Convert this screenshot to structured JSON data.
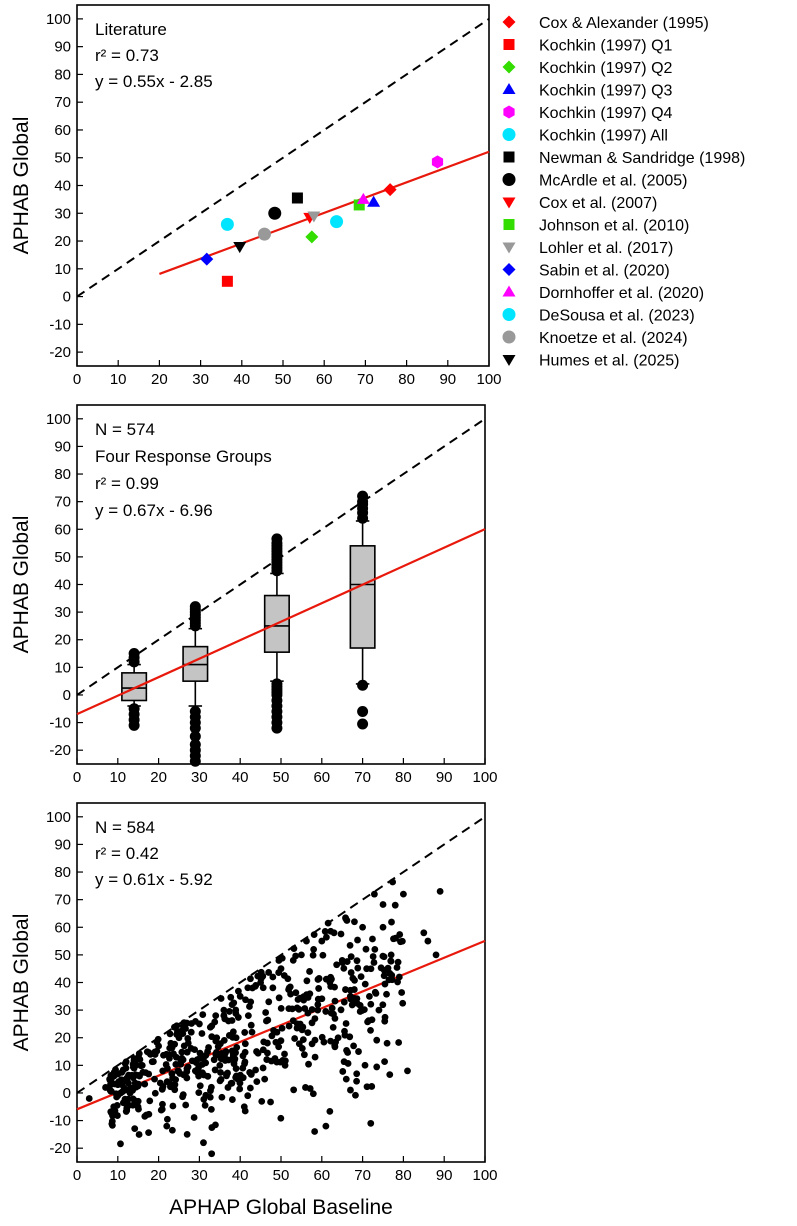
{
  "chart_data": [
    {
      "type": "scatter",
      "ylabel": "APHAB Global",
      "xlim": [
        0,
        100
      ],
      "ylim": [
        -25,
        105
      ],
      "xticks": [
        0,
        10,
        20,
        30,
        40,
        50,
        60,
        70,
        80,
        90,
        100
      ],
      "yticks": [
        -20,
        -10,
        0,
        10,
        20,
        30,
        40,
        50,
        60,
        70,
        80,
        90,
        100
      ],
      "annotations": [
        "Literature",
        "r² = 0.73",
        "y = 0.55x - 2.85"
      ],
      "fit": {
        "slope": 0.55,
        "intercept": -2.85,
        "x_range": [
          20,
          100
        ],
        "color": "#e8190c"
      },
      "identity_line": {
        "x_range": [
          0,
          100
        ],
        "color": "#000000"
      },
      "series": [
        {
          "name": "Cox & Alexander (1995)",
          "marker": "diamond",
          "color": "#ff0000",
          "points": [
            [
              76,
              38.5
            ]
          ]
        },
        {
          "name": "Kochkin (1997) Q1",
          "marker": "square",
          "color": "#ff0000",
          "points": [
            [
              36.5,
              5.5
            ]
          ]
        },
        {
          "name": "Kochkin (1997) Q2",
          "marker": "diamond",
          "color": "#33dd00",
          "points": [
            [
              57,
              21.5
            ]
          ]
        },
        {
          "name": "Kochkin (1997) Q3",
          "marker": "triangle",
          "color": "#0000ff",
          "points": [
            [
              72,
              34
            ]
          ]
        },
        {
          "name": "Kochkin (1997) Q4",
          "marker": "hexagon",
          "color": "#ff00ff",
          "points": [
            [
              87.5,
              48.5
            ]
          ]
        },
        {
          "name": "Kochkin (1997) All",
          "marker": "circle",
          "color": "#00e5ff",
          "points": [
            [
              63,
              27
            ]
          ]
        },
        {
          "name": "Newman & Sandridge (1998)",
          "marker": "square",
          "color": "#000000",
          "points": [
            [
              53.5,
              35.5
            ]
          ]
        },
        {
          "name": "McArdle et al. (2005)",
          "marker": "circle",
          "color": "#000000",
          "points": [
            [
              48,
              30
            ]
          ]
        },
        {
          "name": "Cox et al. (2007)",
          "marker": "triangle-down",
          "color": "#ff0000",
          "points": [
            [
              56.5,
              28.5
            ]
          ]
        },
        {
          "name": "Johnson et al. (2010)",
          "marker": "square",
          "color": "#33dd00",
          "points": [
            [
              68.5,
              33
            ]
          ]
        },
        {
          "name": "Lohler et al. (2017)",
          "marker": "triangle-down",
          "color": "#999999",
          "points": [
            [
              57.5,
              29
            ]
          ]
        },
        {
          "name": "Sabin et al. (2020)",
          "marker": "diamond",
          "color": "#0000ff",
          "points": [
            [
              31.5,
              13.5
            ]
          ]
        },
        {
          "name": "Dornhoffer et al. (2020)",
          "marker": "triangle",
          "color": "#ff00ff",
          "points": [
            [
              69.5,
              35
            ]
          ]
        },
        {
          "name": "DeSousa et al. (2023)",
          "marker": "circle",
          "color": "#00e5ff",
          "points": [
            [
              36.5,
              26
            ]
          ]
        },
        {
          "name": "Knoetze et al. (2024)",
          "marker": "circle",
          "color": "#999999",
          "points": [
            [
              45.5,
              22.5
            ]
          ]
        },
        {
          "name": "Humes et al. (2025)",
          "marker": "triangle-down",
          "color": "#000000",
          "points": [
            [
              39.5,
              18
            ]
          ]
        }
      ]
    },
    {
      "type": "box",
      "ylabel": "APHAB Global",
      "xlim": [
        0,
        100
      ],
      "ylim": [
        -25,
        105
      ],
      "xticks": [
        0,
        10,
        20,
        30,
        40,
        50,
        60,
        70,
        80,
        90,
        100
      ],
      "yticks": [
        -20,
        -10,
        0,
        10,
        20,
        30,
        40,
        50,
        60,
        70,
        80,
        90,
        100
      ],
      "annotations": [
        "N = 574",
        "Four Response Groups",
        "r² = 0.99",
        "y = 0.67x - 6.96"
      ],
      "fit": {
        "slope": 0.67,
        "intercept": -6.96,
        "x_range": [
          0,
          100
        ],
        "color": "#e8190c"
      },
      "identity_line": {
        "x_range": [
          0,
          100
        ],
        "color": "#000000"
      },
      "boxes": [
        {
          "x": 14,
          "q1": -2,
          "median": 2.5,
          "q3": 8,
          "whisker_low": -4,
          "whisker_high": 11,
          "outliers": [
            -11,
            -9,
            -7,
            -5,
            12,
            13.5,
            15
          ]
        },
        {
          "x": 29,
          "q1": 5,
          "median": 11,
          "q3": 17.5,
          "whisker_low": -4,
          "whisker_high": 24,
          "outliers": [
            -24,
            -22,
            -20,
            -18,
            -15,
            -12,
            -10,
            -8,
            -6,
            25,
            26,
            27,
            28,
            29,
            30,
            31,
            32
          ]
        },
        {
          "x": 49,
          "q1": 15.5,
          "median": 25,
          "q3": 36,
          "whisker_low": 5,
          "whisker_high": 44,
          "outliers": [
            -12,
            -10,
            -8,
            -6,
            -4,
            -2,
            0,
            1,
            2,
            3,
            4,
            45,
            46,
            47,
            48,
            49,
            50,
            51,
            52,
            53,
            54,
            55,
            56.5
          ]
        },
        {
          "x": 70,
          "q1": 17,
          "median": 40,
          "q3": 54,
          "whisker_low": 4,
          "whisker_high": 63,
          "outliers": [
            -10.5,
            -6,
            3.5,
            64,
            66,
            67.5,
            69,
            70,
            72
          ]
        }
      ]
    },
    {
      "type": "scatter",
      "xlabel": "APHAP Global Baseline",
      "ylabel": "APHAB Global",
      "xlim": [
        0,
        100
      ],
      "ylim": [
        -25,
        105
      ],
      "xticks": [
        0,
        10,
        20,
        30,
        40,
        50,
        60,
        70,
        80,
        90,
        100
      ],
      "yticks": [
        -20,
        -10,
        0,
        10,
        20,
        30,
        40,
        50,
        60,
        70,
        80,
        90,
        100
      ],
      "annotations": [
        "N = 584",
        "r² = 0.42",
        "y = 0.61x - 5.92"
      ],
      "fit": {
        "slope": 0.61,
        "intercept": -5.92,
        "x_range": [
          0,
          100
        ],
        "color": "#e8190c"
      },
      "identity_line": {
        "x_range": [
          0,
          100
        ],
        "color": "#000000"
      },
      "point_count": 584,
      "sample_points": [
        [
          3,
          -2
        ],
        [
          7,
          2
        ],
        [
          8,
          5
        ],
        [
          9,
          -5
        ],
        [
          10,
          7
        ],
        [
          11,
          3
        ],
        [
          12,
          9
        ],
        [
          13,
          0
        ],
        [
          14,
          12
        ],
        [
          15,
          -3
        ],
        [
          16,
          10
        ],
        [
          17,
          -8
        ],
        [
          18,
          14
        ],
        [
          19,
          5
        ],
        [
          20,
          17
        ],
        [
          21,
          8
        ],
        [
          22,
          -12
        ],
        [
          23,
          18
        ],
        [
          24,
          3
        ],
        [
          25,
          20
        ],
        [
          26,
          12
        ],
        [
          27,
          -15
        ],
        [
          28,
          22
        ],
        [
          29,
          8
        ],
        [
          30,
          25
        ],
        [
          31,
          -18
        ],
        [
          32,
          15
        ],
        [
          33,
          -22
        ],
        [
          34,
          28
        ],
        [
          35,
          10
        ],
        [
          36,
          30
        ],
        [
          37,
          2
        ],
        [
          38,
          32
        ],
        [
          39,
          20
        ],
        [
          40,
          35
        ],
        [
          41,
          -5
        ],
        [
          42,
          28
        ],
        [
          43,
          38
        ],
        [
          44,
          15
        ],
        [
          45,
          40
        ],
        [
          46,
          5
        ],
        [
          47,
          33
        ],
        [
          48,
          42
        ],
        [
          49,
          22
        ],
        [
          50,
          45
        ],
        [
          51,
          10
        ],
        [
          52,
          38
        ],
        [
          53,
          48
        ],
        [
          54,
          25
        ],
        [
          55,
          50
        ],
        [
          56,
          2
        ],
        [
          57,
          44
        ],
        [
          58,
          52
        ],
        [
          59,
          30
        ],
        [
          60,
          55
        ],
        [
          61,
          -12
        ],
        [
          62,
          40
        ],
        [
          63,
          58
        ],
        [
          64,
          20
        ],
        [
          65,
          48
        ],
        [
          66,
          5
        ],
        [
          67,
          35
        ],
        [
          68,
          62
        ],
        [
          69,
          15
        ],
        [
          70,
          60
        ],
        [
          71,
          45
        ],
        [
          72,
          -11
        ],
        [
          73,
          52
        ],
        [
          74,
          30
        ],
        [
          75,
          60
        ],
        [
          76,
          18
        ],
        [
          77,
          50
        ],
        [
          78,
          68
        ],
        [
          79,
          42
        ],
        [
          80,
          72
        ],
        [
          81,
          8
        ],
        [
          85,
          58
        ],
        [
          86,
          55
        ],
        [
          88,
          50
        ],
        [
          89,
          73
        ]
      ]
    }
  ],
  "legend": {
    "placement": "right of first panel",
    "entries": [
      "Cox & Alexander (1995)",
      "Kochkin (1997) Q1",
      "Kochkin (1997) Q2",
      "Kochkin (1997) Q3",
      "Kochkin (1997) Q4",
      "Kochkin (1997) All",
      "Newman & Sandridge (1998)",
      "McArdle et al. (2005)",
      "Cox et al. (2007)",
      "Johnson et al. (2010)",
      "Lohler et al. (2017)",
      "Sabin et al. (2020)",
      "Dornhoffer et al. (2020)",
      "DeSousa et al. (2023)",
      "Knoetze et al. (2024)",
      "Humes et al. (2025)"
    ]
  }
}
